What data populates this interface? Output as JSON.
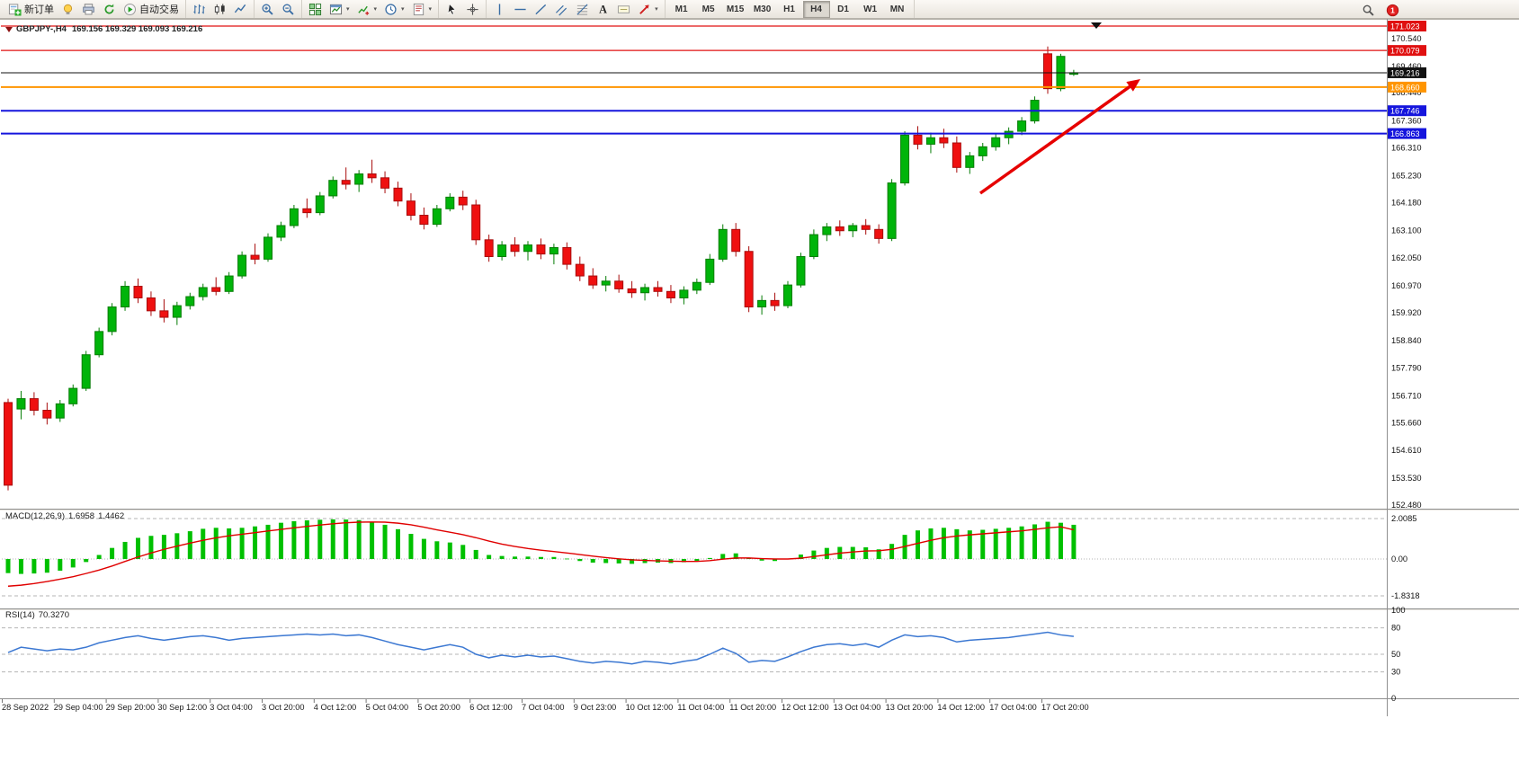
{
  "toolbar": {
    "groups": [
      {
        "items": [
          {
            "name": "new-order-button",
            "icon": "new-order",
            "label": "新订单"
          },
          {
            "name": "chart-style-button",
            "icon": "lamp"
          },
          {
            "name": "print-button",
            "icon": "printer"
          },
          {
            "name": "refresh-button",
            "icon": "refresh"
          },
          {
            "name": "autotrading-button",
            "icon": "autotrade",
            "label": "自动交易"
          }
        ]
      },
      {
        "items": [
          {
            "name": "bars-mode-button",
            "icon": "bar-chart"
          },
          {
            "name": "candles-mode-button",
            "icon": "candles"
          },
          {
            "name": "line-mode-button",
            "icon": "line-chart"
          }
        ]
      },
      {
        "items": [
          {
            "name": "zoom-in-button",
            "icon": "zoom-in"
          },
          {
            "name": "zoom-out-button",
            "icon": "zoom-out"
          }
        ]
      },
      {
        "items": [
          {
            "name": "tile-windows-button",
            "icon": "tile"
          },
          {
            "name": "new-chart-button",
            "icon": "chart-window",
            "dropdown": true
          },
          {
            "name": "indicators-button",
            "icon": "indicators",
            "dropdown": true
          },
          {
            "name": "periods-button",
            "icon": "clock",
            "dropdown": true
          },
          {
            "name": "templates-button",
            "icon": "template",
            "dropdown": true
          }
        ]
      },
      {
        "items": [
          {
            "name": "cursor-tool-button",
            "icon": "cursor"
          },
          {
            "name": "crosshair-tool-button",
            "icon": "crosshair"
          }
        ]
      },
      {
        "items": [
          {
            "name": "vline-tool-button",
            "icon": "vline"
          },
          {
            "name": "hline-tool-button",
            "icon": "hline"
          },
          {
            "name": "trendline-tool-button",
            "icon": "trendline"
          },
          {
            "name": "channel-tool-button",
            "icon": "channel"
          },
          {
            "name": "fibonacci-tool-button",
            "icon": "fibo"
          },
          {
            "name": "text-tool-button",
            "icon": "text"
          },
          {
            "name": "label-tool-button",
            "icon": "label"
          },
          {
            "name": "arrows-tool-button",
            "icon": "arrows",
            "dropdown": true
          }
        ]
      }
    ],
    "timeframes": [
      "M1",
      "M5",
      "M15",
      "M30",
      "H1",
      "H4",
      "D1",
      "W1",
      "MN"
    ],
    "active_timeframe": "H4",
    "right": {
      "alert_badge": "1"
    }
  },
  "chart": {
    "symbol_period": "GBPJPY-,H4",
    "ohlc_line": "169.156 169.329 169.093 169.216",
    "macd_title": "MACD(12,26,9)",
    "macd_main_value": "1.6958",
    "macd_signal_value": "1.4462",
    "rsi_title": "RSI(14)",
    "rsi_value": "70.3270"
  },
  "chart_data": [
    {
      "type": "candlestick",
      "title": "GBPJPY-,H4",
      "current_ohlc": {
        "open": 169.156,
        "high": 169.329,
        "low": 169.093,
        "close": 169.216
      },
      "up_color": "#00b40a",
      "down_color": "#ef1010",
      "candles_per_label": 4,
      "x_labels": [
        "28 Sep 2022",
        "29 Sep 04:00",
        "29 Sep 20:00",
        "30 Sep 12:00",
        "3 Oct 04:00",
        "3 Oct 20:00",
        "4 Oct 12:00",
        "5 Oct 04:00",
        "5 Oct 20:00",
        "6 Oct 12:00",
        "7 Oct 04:00",
        "9 Oct 23:00",
        "10 Oct 12:00",
        "11 Oct 04:00",
        "11 Oct 20:00",
        "12 Oct 12:00",
        "13 Oct 04:00",
        "13 Oct 20:00",
        "14 Oct 12:00",
        "17 Oct 04:00",
        "17 Oct 20:00"
      ],
      "y_ticks": [
        "170.540",
        "169.460",
        "168.440",
        "167.360",
        "166.310",
        "165.230",
        "164.180",
        "163.100",
        "162.050",
        "160.970",
        "159.920",
        "158.840",
        "157.790",
        "156.710",
        "155.660",
        "154.610",
        "153.530",
        "152.480"
      ],
      "price_lines": [
        {
          "price": 171.023,
          "label": "171.023",
          "color": "#e01010",
          "width": 1.2,
          "role": "resistance-line"
        },
        {
          "price": 170.079,
          "label": "170.079",
          "color": "#e01010",
          "width": 1.2,
          "role": "resistance-line"
        },
        {
          "price": 169.216,
          "label": "169.216",
          "color": "#111111",
          "width": 1,
          "role": "current-price-line"
        },
        {
          "price": 168.66,
          "label": "168.660",
          "color": "#ff9500",
          "width": 2,
          "role": "level-line"
        },
        {
          "price": 167.746,
          "label": "167.746",
          "color": "#1515dd",
          "width": 2,
          "role": "support-line"
        },
        {
          "price": 166.863,
          "label": "166.863",
          "color": "#1515dd",
          "width": 2,
          "role": "support-line"
        }
      ],
      "trend_arrow": {
        "from": [
          1090,
          194
        ],
        "to": [
          1268,
          67
        ],
        "color": "#e60000"
      },
      "candles": [
        [
          156.45,
          156.6,
          153.05,
          153.25
        ],
        [
          156.2,
          156.9,
          155.8,
          156.6
        ],
        [
          156.6,
          156.85,
          155.95,
          156.15
        ],
        [
          156.15,
          156.45,
          155.6,
          155.85
        ],
        [
          155.85,
          156.55,
          155.7,
          156.4
        ],
        [
          156.4,
          157.15,
          156.3,
          157.0
        ],
        [
          157.0,
          158.45,
          156.9,
          158.3
        ],
        [
          158.3,
          159.35,
          158.2,
          159.2
        ],
        [
          159.2,
          160.3,
          159.05,
          160.15
        ],
        [
          160.15,
          161.15,
          160.0,
          160.95
        ],
        [
          160.95,
          161.25,
          160.3,
          160.5
        ],
        [
          160.5,
          160.75,
          159.8,
          160.0
        ],
        [
          160.0,
          160.45,
          159.55,
          159.75
        ],
        [
          159.75,
          160.35,
          159.45,
          160.2
        ],
        [
          160.2,
          160.7,
          160.05,
          160.55
        ],
        [
          160.55,
          161.05,
          160.4,
          160.9
        ],
        [
          160.9,
          161.3,
          160.6,
          160.75
        ],
        [
          160.75,
          161.5,
          160.65,
          161.35
        ],
        [
          161.35,
          162.3,
          161.25,
          162.15
        ],
        [
          162.15,
          162.6,
          161.8,
          162.0
        ],
        [
          162.0,
          163.0,
          161.9,
          162.85
        ],
        [
          162.85,
          163.45,
          162.7,
          163.3
        ],
        [
          163.3,
          164.1,
          163.2,
          163.95
        ],
        [
          163.95,
          164.35,
          163.6,
          163.8
        ],
        [
          163.8,
          164.6,
          163.7,
          164.45
        ],
        [
          164.45,
          165.2,
          164.35,
          165.05
        ],
        [
          165.05,
          165.55,
          164.7,
          164.9
        ],
        [
          164.9,
          165.45,
          164.6,
          165.3
        ],
        [
          165.3,
          165.85,
          164.95,
          165.15
        ],
        [
          165.15,
          165.4,
          164.55,
          164.75
        ],
        [
          164.75,
          165.0,
          164.05,
          164.25
        ],
        [
          164.25,
          164.55,
          163.5,
          163.7
        ],
        [
          163.7,
          164.0,
          163.15,
          163.35
        ],
        [
          163.35,
          164.1,
          163.25,
          163.95
        ],
        [
          163.95,
          164.55,
          163.85,
          164.4
        ],
        [
          164.4,
          164.65,
          163.9,
          164.1
        ],
        [
          164.1,
          164.3,
          162.55,
          162.75
        ],
        [
          162.75,
          162.95,
          161.9,
          162.1
        ],
        [
          162.1,
          162.7,
          161.95,
          162.55
        ],
        [
          162.55,
          162.85,
          162.1,
          162.3
        ],
        [
          162.3,
          162.7,
          161.95,
          162.55
        ],
        [
          162.55,
          162.8,
          162.0,
          162.2
        ],
        [
          162.2,
          162.6,
          161.8,
          162.45
        ],
        [
          162.45,
          162.65,
          161.6,
          161.8
        ],
        [
          161.8,
          162.1,
          161.15,
          161.35
        ],
        [
          161.35,
          161.65,
          160.85,
          161.0
        ],
        [
          161.0,
          161.35,
          160.75,
          161.15
        ],
        [
          161.15,
          161.4,
          160.7,
          160.85
        ],
        [
          160.85,
          161.15,
          160.5,
          160.7
        ],
        [
          160.7,
          161.05,
          160.4,
          160.9
        ],
        [
          160.9,
          161.15,
          160.55,
          160.75
        ],
        [
          160.75,
          161.0,
          160.3,
          160.5
        ],
        [
          160.5,
          160.95,
          160.25,
          160.8
        ],
        [
          160.8,
          161.25,
          160.65,
          161.1
        ],
        [
          161.1,
          162.2,
          161.0,
          162.0
        ],
        [
          162.0,
          163.35,
          161.9,
          163.15
        ],
        [
          163.15,
          163.4,
          162.1,
          162.3
        ],
        [
          162.3,
          162.5,
          159.95,
          160.15
        ],
        [
          160.15,
          160.6,
          159.85,
          160.4
        ],
        [
          160.4,
          160.7,
          160.0,
          160.2
        ],
        [
          160.2,
          161.15,
          160.1,
          161.0
        ],
        [
          161.0,
          162.25,
          160.9,
          162.1
        ],
        [
          162.1,
          163.15,
          162.0,
          162.95
        ],
        [
          162.95,
          163.4,
          162.7,
          163.25
        ],
        [
          163.25,
          163.5,
          162.9,
          163.1
        ],
        [
          163.1,
          163.4,
          162.85,
          163.3
        ],
        [
          163.3,
          163.55,
          162.95,
          163.15
        ],
        [
          163.15,
          163.35,
          162.6,
          162.8
        ],
        [
          162.8,
          165.1,
          162.7,
          164.95
        ],
        [
          164.95,
          166.95,
          164.85,
          166.8
        ],
        [
          166.8,
          167.15,
          166.25,
          166.45
        ],
        [
          166.45,
          166.9,
          166.1,
          166.7
        ],
        [
          166.7,
          167.05,
          166.3,
          166.5
        ],
        [
          166.5,
          166.75,
          165.35,
          165.55
        ],
        [
          165.55,
          166.15,
          165.3,
          166.0
        ],
        [
          166.0,
          166.5,
          165.8,
          166.35
        ],
        [
          166.35,
          166.85,
          166.2,
          166.7
        ],
        [
          166.7,
          167.1,
          166.45,
          166.95
        ],
        [
          166.95,
          167.5,
          166.8,
          167.35
        ],
        [
          167.35,
          168.3,
          167.25,
          168.15
        ],
        [
          169.95,
          170.23,
          168.4,
          168.6
        ],
        [
          168.6,
          169.95,
          168.5,
          169.85
        ],
        [
          169.156,
          169.329,
          169.093,
          169.216
        ]
      ]
    },
    {
      "type": "macd",
      "label": "MACD(12,26,9)",
      "values": {
        "main": 1.6958,
        "signal": 1.4462
      },
      "hist_color": "#00c000",
      "signal_color": "#e00000",
      "axis_ticks": [
        {
          "label": "2.0085",
          "v": 2.0085
        },
        {
          "label": "0.00",
          "v": 0
        },
        {
          "label": "-1.8318",
          "v": -1.8318
        }
      ],
      "histogram": [
        -0.7,
        -0.74,
        -0.72,
        -0.68,
        -0.58,
        -0.42,
        -0.15,
        0.2,
        0.55,
        0.85,
        1.05,
        1.15,
        1.2,
        1.28,
        1.38,
        1.5,
        1.55,
        1.52,
        1.55,
        1.62,
        1.7,
        1.8,
        1.88,
        1.92,
        1.95,
        1.97,
        1.96,
        1.93,
        1.85,
        1.7,
        1.48,
        1.25,
        1.0,
        0.88,
        0.82,
        0.7,
        0.45,
        0.2,
        0.15,
        0.12,
        0.12,
        0.1,
        0.1,
        0.02,
        -0.1,
        -0.18,
        -0.2,
        -0.22,
        -0.24,
        -0.2,
        -0.18,
        -0.2,
        -0.16,
        -0.1,
        0.05,
        0.25,
        0.28,
        0.05,
        -0.08,
        -0.1,
        0.02,
        0.22,
        0.42,
        0.55,
        0.6,
        0.6,
        0.58,
        0.48,
        0.75,
        1.2,
        1.42,
        1.52,
        1.55,
        1.48,
        1.42,
        1.45,
        1.5,
        1.55,
        1.62,
        1.72,
        1.85,
        1.8,
        1.7
      ],
      "signal_line": [
        -1.35,
        -1.3,
        -1.22,
        -1.12,
        -1.0,
        -0.88,
        -0.72,
        -0.55,
        -0.35,
        -0.12,
        0.1,
        0.3,
        0.48,
        0.64,
        0.79,
        0.93,
        1.05,
        1.15,
        1.23,
        1.31,
        1.39,
        1.47,
        1.55,
        1.62,
        1.69,
        1.75,
        1.8,
        1.83,
        1.84,
        1.83,
        1.78,
        1.7,
        1.58,
        1.45,
        1.33,
        1.21,
        1.06,
        0.89,
        0.74,
        0.62,
        0.52,
        0.44,
        0.37,
        0.3,
        0.22,
        0.14,
        0.07,
        0.01,
        -0.04,
        -0.07,
        -0.09,
        -0.11,
        -0.12,
        -0.12,
        -0.08,
        -0.01,
        0.05,
        0.05,
        0.02,
        0.0,
        0.0,
        0.04,
        0.12,
        0.21,
        0.29,
        0.35,
        0.4,
        0.41,
        0.48,
        0.62,
        0.78,
        0.93,
        1.06,
        1.14,
        1.2,
        1.25,
        1.3,
        1.35,
        1.4,
        1.47,
        1.55,
        1.6,
        1.45
      ]
    },
    {
      "type": "rsi",
      "label": "RSI(14)",
      "value": 70.327,
      "line_color": "#3c78d2",
      "levels": [
        80,
        50,
        30
      ],
      "axis_ticks": [
        {
          "label": "100",
          "v": 100
        },
        {
          "label": "80",
          "v": 80
        },
        {
          "label": "50",
          "v": 50
        },
        {
          "label": "30",
          "v": 30
        },
        {
          "label": "0",
          "v": 0
        }
      ],
      "line": [
        52,
        58,
        56,
        54,
        56,
        55,
        58,
        63,
        66,
        69,
        71,
        68,
        66,
        68,
        70,
        71,
        69,
        66,
        68,
        69,
        70,
        71,
        72,
        73,
        72,
        73,
        71,
        72,
        69,
        65,
        61,
        58,
        55,
        58,
        61,
        58,
        50,
        46,
        49,
        47,
        49,
        47,
        48,
        45,
        42,
        40,
        42,
        41,
        39,
        42,
        41,
        39,
        42,
        44,
        50,
        57,
        51,
        41,
        43,
        42,
        47,
        53,
        58,
        61,
        62,
        60,
        62,
        58,
        66,
        72,
        70,
        71,
        69,
        64,
        66,
        67,
        68,
        69,
        71,
        73,
        75,
        72,
        70.3
      ]
    }
  ]
}
